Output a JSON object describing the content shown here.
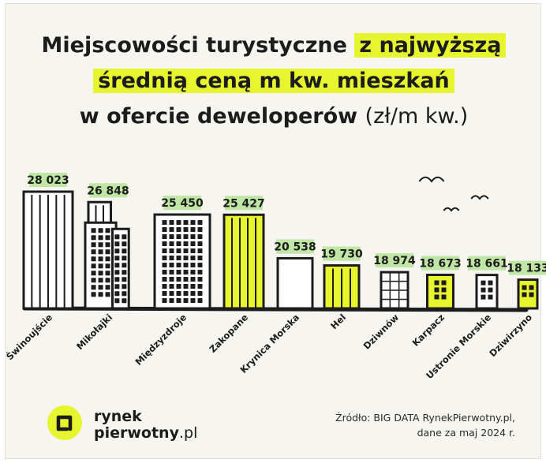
{
  "title": {
    "line1_plain": "Miejscowości turystyczne ",
    "line1_highlight": "z najwyższą",
    "line2_highlight": "średnią ceną m kw. mieszkań",
    "line3_plain": "w ofercie deweloperów",
    "line3_unit": "(zł/m kw.)"
  },
  "chart_data": {
    "type": "bar",
    "categories": [
      "Świnoujście",
      "Mikołajki",
      "Międzyzdroje",
      "Zakopane",
      "Krynica Morska",
      "Hel",
      "Dziwnów",
      "Karpacz",
      "Ustronie Morskie",
      "Dziwirzyno"
    ],
    "values": [
      28023,
      26848,
      25450,
      25427,
      20538,
      19730,
      18974,
      18673,
      18661,
      18133
    ],
    "value_labels": [
      "28 023",
      "26 848",
      "25 450",
      "25 427",
      "20 538",
      "19 730",
      "18 974",
      "18 673",
      "18 661",
      "18 133"
    ],
    "highlighted": [
      false,
      false,
      false,
      true,
      false,
      true,
      false,
      true,
      false,
      true
    ],
    "colors": {
      "highlight": "#e6f52e",
      "label_bg": "#bfe6a4",
      "ink": "#1c1c1c",
      "plain_fill": "#ffffff"
    }
  },
  "footer": {
    "brand_name": "rynek",
    "brand_second": "pierwotny",
    "brand_suffix": ".pl",
    "source_line1": "Źródło: BIG DATA RynekPierwotny.pl,",
    "source_line2": "dane za maj 2024 r."
  }
}
